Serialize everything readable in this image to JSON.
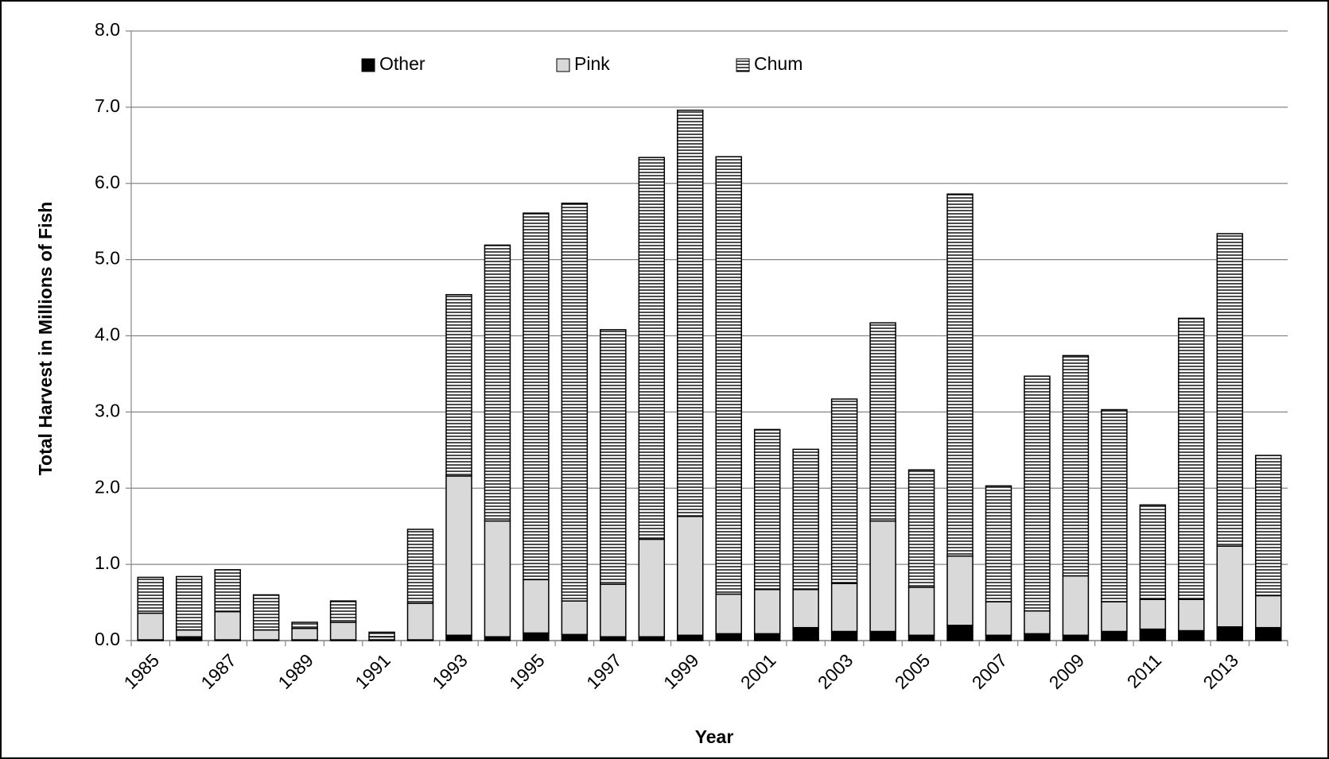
{
  "chart_data": {
    "type": "bar",
    "stacked": true,
    "x_label": "Year",
    "y_label": "Total Harvest in Millions of Fish",
    "categories": [
      "1985",
      null,
      "1987",
      null,
      "1989",
      null,
      "1991",
      null,
      "1993",
      null,
      "1995",
      null,
      "1997",
      null,
      "1999",
      null,
      "2001",
      null,
      "2003",
      null,
      "2005",
      null,
      "2007",
      null,
      "2009",
      null,
      "2011",
      null,
      "2013",
      null
    ],
    "series": [
      {
        "name": "Other",
        "color": "#000000",
        "values": [
          0.01,
          0.05,
          0.01,
          0.01,
          0.01,
          0.01,
          0.01,
          0.01,
          0.07,
          0.05,
          0.1,
          0.08,
          0.05,
          0.05,
          0.07,
          0.09,
          0.09,
          0.17,
          0.12,
          0.12,
          0.07,
          0.2,
          0.07,
          0.09,
          0.07,
          0.12,
          0.15,
          0.13,
          0.18,
          0.17
        ]
      },
      {
        "name": "Pink",
        "color": "#d9d9d9",
        "values": [
          0.35,
          0.09,
          0.37,
          0.13,
          0.15,
          0.23,
          0.04,
          0.48,
          2.09,
          1.52,
          0.7,
          0.44,
          0.69,
          1.28,
          1.56,
          0.52,
          0.58,
          0.5,
          0.63,
          1.45,
          0.63,
          0.91,
          0.44,
          0.3,
          0.78,
          0.39,
          0.39,
          0.41,
          1.06,
          0.42
        ]
      },
      {
        "name": "Chum",
        "color": "#000000",
        "pattern": "horizontal-stripes",
        "values": [
          0.47,
          0.7,
          0.55,
          0.46,
          0.08,
          0.28,
          0.06,
          0.97,
          2.38,
          3.62,
          4.81,
          5.22,
          3.34,
          5.01,
          5.33,
          5.74,
          2.1,
          1.84,
          2.42,
          2.6,
          1.54,
          4.75,
          1.52,
          3.08,
          2.89,
          2.52,
          1.24,
          3.69,
          4.1,
          1.84
        ]
      }
    ],
    "ylim": [
      0,
      8
    ],
    "yticks": [
      {
        "value": 0,
        "label": "0.0"
      },
      {
        "value": 1,
        "label": "1.0"
      },
      {
        "value": 2,
        "label": "2.0"
      },
      {
        "value": 3,
        "label": "3.0"
      },
      {
        "value": 4,
        "label": "4.0"
      },
      {
        "value": 5,
        "label": "5.0"
      },
      {
        "value": 6,
        "label": "6.0"
      },
      {
        "value": 7,
        "label": "7.0"
      },
      {
        "value": 8,
        "label": "8.0"
      }
    ],
    "grid": true,
    "legend": "top"
  }
}
